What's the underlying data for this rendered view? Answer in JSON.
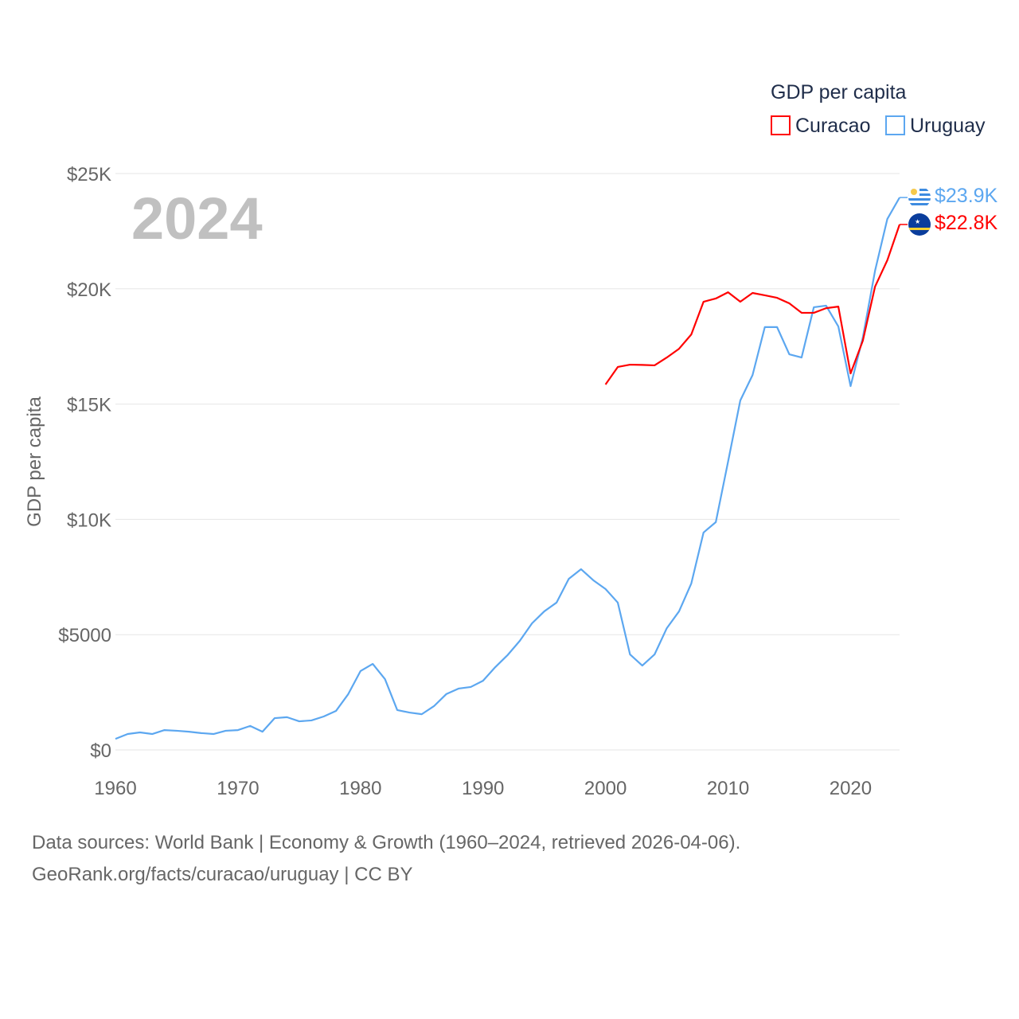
{
  "chart_data": {
    "type": "line",
    "title": "GDP per capita",
    "year_label": "2024",
    "ylabel": "GDP per capita",
    "xlabel": "",
    "xlim": [
      1960,
      2024
    ],
    "ylim": [
      0,
      25000
    ],
    "x_ticks": [
      1960,
      1970,
      1980,
      1990,
      2000,
      2010,
      2020
    ],
    "x_tick_labels": [
      "1960",
      "1970",
      "1980",
      "1990",
      "2000",
      "2010",
      "2020"
    ],
    "y_ticks": [
      0,
      5000,
      10000,
      15000,
      20000,
      25000
    ],
    "y_tick_labels": [
      "$0",
      "$5000",
      "$10K",
      "$15K",
      "$20K",
      "$25K"
    ],
    "grid": true,
    "legend_position": "top-right",
    "series": [
      {
        "name": "Curacao",
        "color": "#ff0000",
        "end_label": "$22.8K",
        "x": [
          2000,
          2001,
          2002,
          2003,
          2004,
          2005,
          2006,
          2007,
          2008,
          2009,
          2010,
          2011,
          2012,
          2013,
          2014,
          2015,
          2016,
          2017,
          2018,
          2019,
          2020,
          2021,
          2022,
          2023,
          2024
        ],
        "values": [
          15850,
          16610,
          16710,
          16700,
          16680,
          17020,
          17400,
          18020,
          19440,
          19580,
          19850,
          19440,
          19820,
          19720,
          19610,
          19370,
          18960,
          18960,
          19160,
          19230,
          16330,
          17750,
          20100,
          21240,
          22790
        ]
      },
      {
        "name": "Uruguay",
        "color": "#5ca7f0",
        "end_label": "$23.9K",
        "x": [
          1960,
          1961,
          1962,
          1963,
          1964,
          1965,
          1966,
          1967,
          1968,
          1969,
          1970,
          1971,
          1972,
          1973,
          1974,
          1975,
          1976,
          1977,
          1978,
          1979,
          1980,
          1981,
          1982,
          1983,
          1984,
          1985,
          1986,
          1987,
          1988,
          1989,
          1990,
          1991,
          1992,
          1993,
          1994,
          1995,
          1996,
          1997,
          1998,
          1999,
          2000,
          2001,
          2002,
          2003,
          2004,
          2005,
          2006,
          2007,
          2008,
          2009,
          2010,
          2011,
          2012,
          2013,
          2014,
          2015,
          2016,
          2017,
          2018,
          2019,
          2020,
          2021,
          2022,
          2023,
          2024
        ],
        "values": [
          480,
          690,
          760,
          690,
          860,
          830,
          790,
          730,
          690,
          830,
          860,
          1040,
          790,
          1380,
          1420,
          1240,
          1280,
          1450,
          1690,
          2420,
          3420,
          3730,
          3070,
          1730,
          1620,
          1550,
          1900,
          2420,
          2660,
          2730,
          3000,
          3590,
          4110,
          4730,
          5490,
          6010,
          6390,
          7420,
          7840,
          7360,
          6980,
          6390,
          4140,
          3660,
          4140,
          5280,
          6010,
          7220,
          9430,
          9880,
          12500,
          15160,
          16260,
          18340,
          18340,
          17160,
          17020,
          19200,
          19270,
          18370,
          15780,
          17890,
          20790,
          23030,
          23960
        ]
      }
    ]
  },
  "footer": {
    "line1": "Data sources: World Bank | Economy & Growth (1960–2024, retrieved 2026-04-06).",
    "line2": "GeoRank.org/facts/curacao/uruguay | CC BY"
  }
}
